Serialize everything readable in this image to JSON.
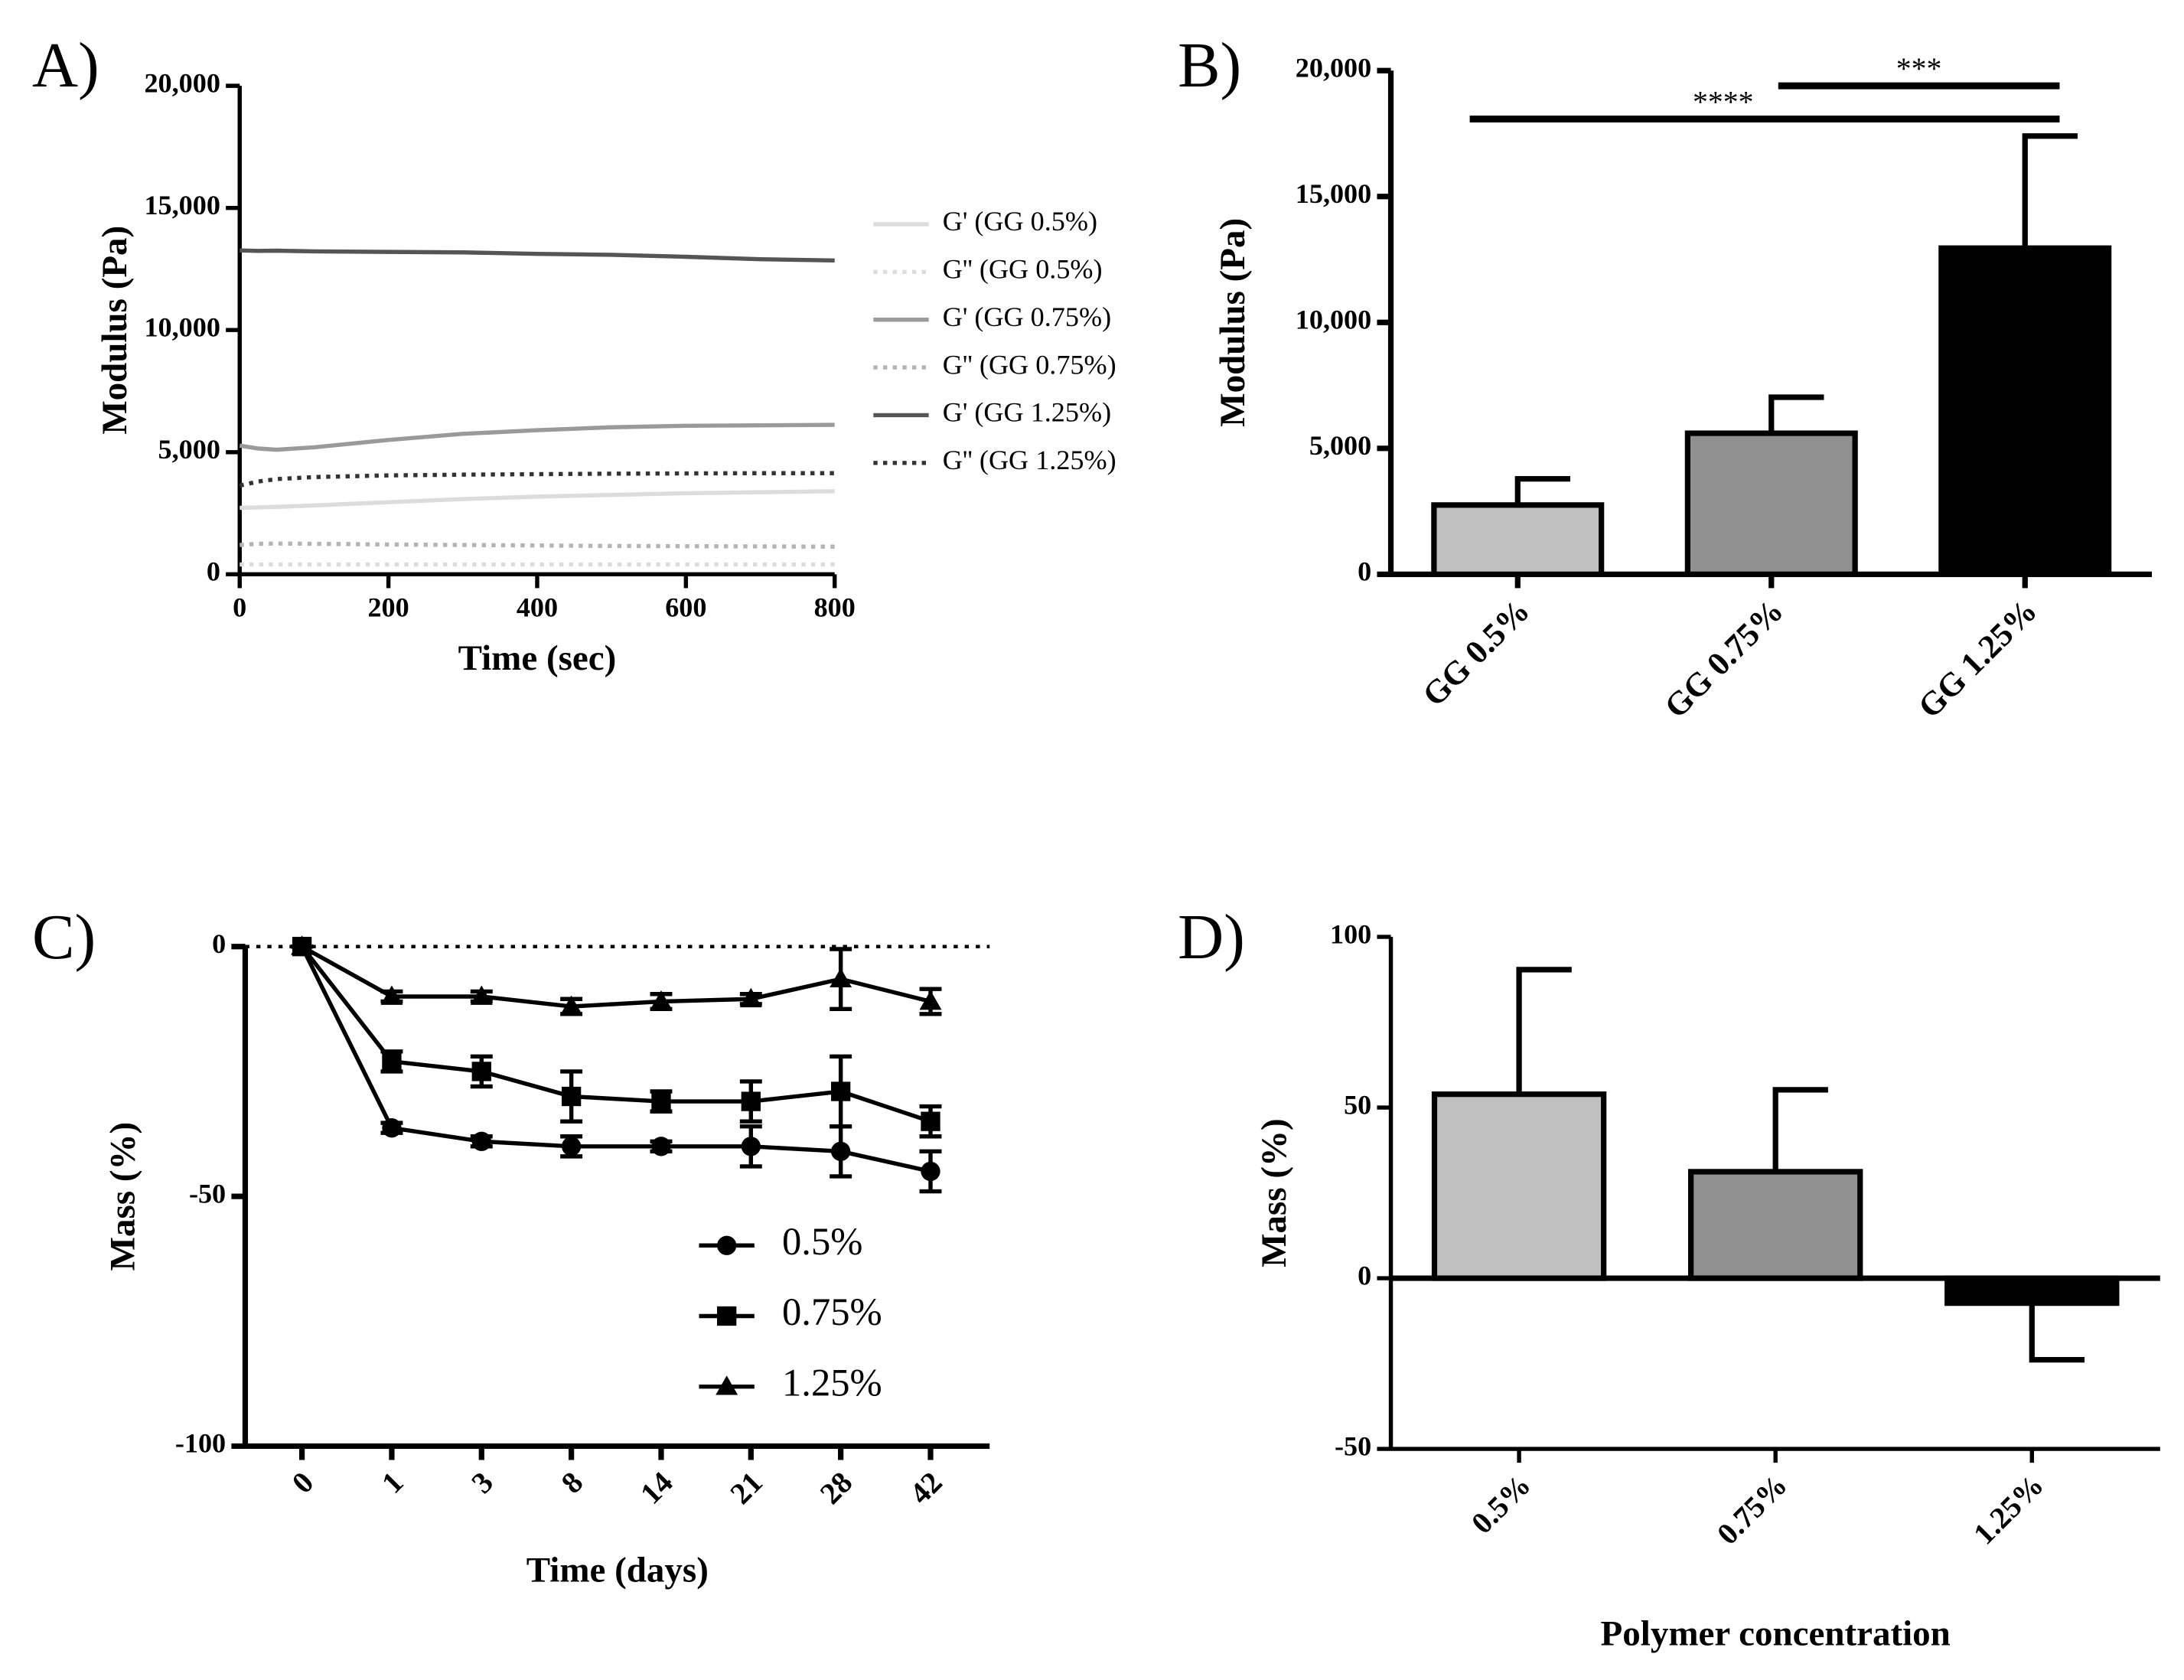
{
  "chart_data": [
    {
      "type": "line",
      "panel_label": "A)",
      "x_label": "Time (sec)",
      "y_label": "Modulus (Pa)",
      "x": [
        0,
        25,
        50,
        100,
        200,
        300,
        400,
        500,
        600,
        700,
        800
      ],
      "xlim": [
        0,
        800
      ],
      "xticks": [
        0,
        200,
        400,
        600,
        800
      ],
      "ylim": [
        0,
        20000
      ],
      "yticks": [
        0,
        {
          "value": 5000,
          "label": "5,000"
        },
        {
          "value": 10000,
          "label": "10,000"
        },
        {
          "value": 15000,
          "label": "15,000"
        },
        {
          "value": 20000,
          "label": "20,000"
        }
      ],
      "series": [
        {
          "name": "G' (GG 0.5%)",
          "color": "#dcdcdc",
          "dash": "solid",
          "values": [
            2720,
            2740,
            2760,
            2820,
            2950,
            3080,
            3180,
            3250,
            3320,
            3360,
            3400
          ]
        },
        {
          "name": "G'' (GG 0.5%)",
          "color": "#dcdcdc",
          "dash": "dotted",
          "values": [
            400,
            400,
            400,
            400,
            400,
            400,
            400,
            400,
            400,
            400,
            400
          ]
        },
        {
          "name": "G' (GG 0.75%)",
          "color": "#9a9a9a",
          "dash": "solid",
          "values": [
            5270,
            5150,
            5100,
            5200,
            5500,
            5750,
            5900,
            6020,
            6080,
            6100,
            6120
          ]
        },
        {
          "name": "G'' (GG 0.75%)",
          "color": "#b4b4b4",
          "dash": "dotted",
          "values": [
            1200,
            1250,
            1260,
            1250,
            1220,
            1200,
            1180,
            1160,
            1150,
            1140,
            1130
          ]
        },
        {
          "name": "G' (GG 1.25%)",
          "color": "#555555",
          "dash": "solid",
          "values": [
            13260,
            13240,
            13250,
            13220,
            13200,
            13180,
            13120,
            13080,
            13000,
            12900,
            12850
          ]
        },
        {
          "name": "G'' (GG 1.25%)",
          "color": "#333333",
          "dash": "dotted",
          "values": [
            3630,
            3800,
            3900,
            3980,
            4050,
            4080,
            4100,
            4120,
            4130,
            4140,
            4140
          ]
        }
      ]
    },
    {
      "type": "bar",
      "panel_label": "B)",
      "y_label": "Modulus (Pa)",
      "categories": [
        "GG 0.5%",
        "GG 0.75%",
        "GG 1.25%"
      ],
      "values": [
        2750,
        5600,
        12950
      ],
      "errors": [
        1040,
        1430,
        4450
      ],
      "colors": [
        "#c0c0c0",
        "#909090",
        "#000000"
      ],
      "ylim": [
        0,
        20000
      ],
      "yticks": [
        0,
        {
          "value": 5000,
          "label": "5,000"
        },
        {
          "value": 10000,
          "label": "10,000"
        },
        {
          "value": 15000,
          "label": "15,000"
        },
        {
          "value": 20000,
          "label": "20,000"
        }
      ],
      "significance": [
        {
          "label": "****",
          "from": 0,
          "to": 2
        },
        {
          "label": "***",
          "from": 1,
          "to": 2
        }
      ]
    },
    {
      "type": "line",
      "panel_label": "C)",
      "x_label": "Time (days)",
      "y_label": "Mass (%)",
      "categories": [
        "0",
        "1",
        "3",
        "8",
        "14",
        "21",
        "28",
        "42"
      ],
      "ylim": [
        -100,
        0
      ],
      "yticks": [
        -100,
        -50,
        0
      ],
      "reference_line": 0,
      "series": [
        {
          "name": "0.5%",
          "color": "#000000",
          "marker": "circle",
          "values": [
            0,
            -36.3,
            -39,
            -40,
            -40,
            -40,
            -41,
            -45
          ],
          "errors": [
            0,
            1,
            1,
            2,
            1,
            4,
            5,
            4
          ]
        },
        {
          "name": "0.75%",
          "color": "#000000",
          "marker": "square",
          "values": [
            0,
            -23,
            -25,
            -30,
            -31,
            -31,
            -29,
            -35
          ],
          "errors": [
            0,
            2,
            3,
            5,
            2,
            4,
            7,
            3
          ]
        },
        {
          "name": "1.25%",
          "color": "#000000",
          "marker": "triangle",
          "values": [
            0,
            -10,
            -10,
            -12,
            -11,
            -10.5,
            -6.5,
            -11
          ],
          "errors": [
            0,
            1,
            1,
            1.5,
            1.5,
            1,
            6,
            2.5
          ]
        }
      ]
    },
    {
      "type": "bar",
      "panel_label": "D)",
      "x_label": "Polymer concentration",
      "y_label": "Mass (%)",
      "categories": [
        "0.5%",
        "0.75%",
        "1.25%"
      ],
      "values": [
        53.9,
        31.2,
        -7.3
      ],
      "errors": [
        36.5,
        24,
        16.6
      ],
      "colors": [
        "#c0c0c0",
        "#909090",
        "#000000"
      ],
      "ylim": [
        -50,
        100
      ],
      "yticks": [
        -50,
        0,
        50,
        100
      ]
    }
  ]
}
